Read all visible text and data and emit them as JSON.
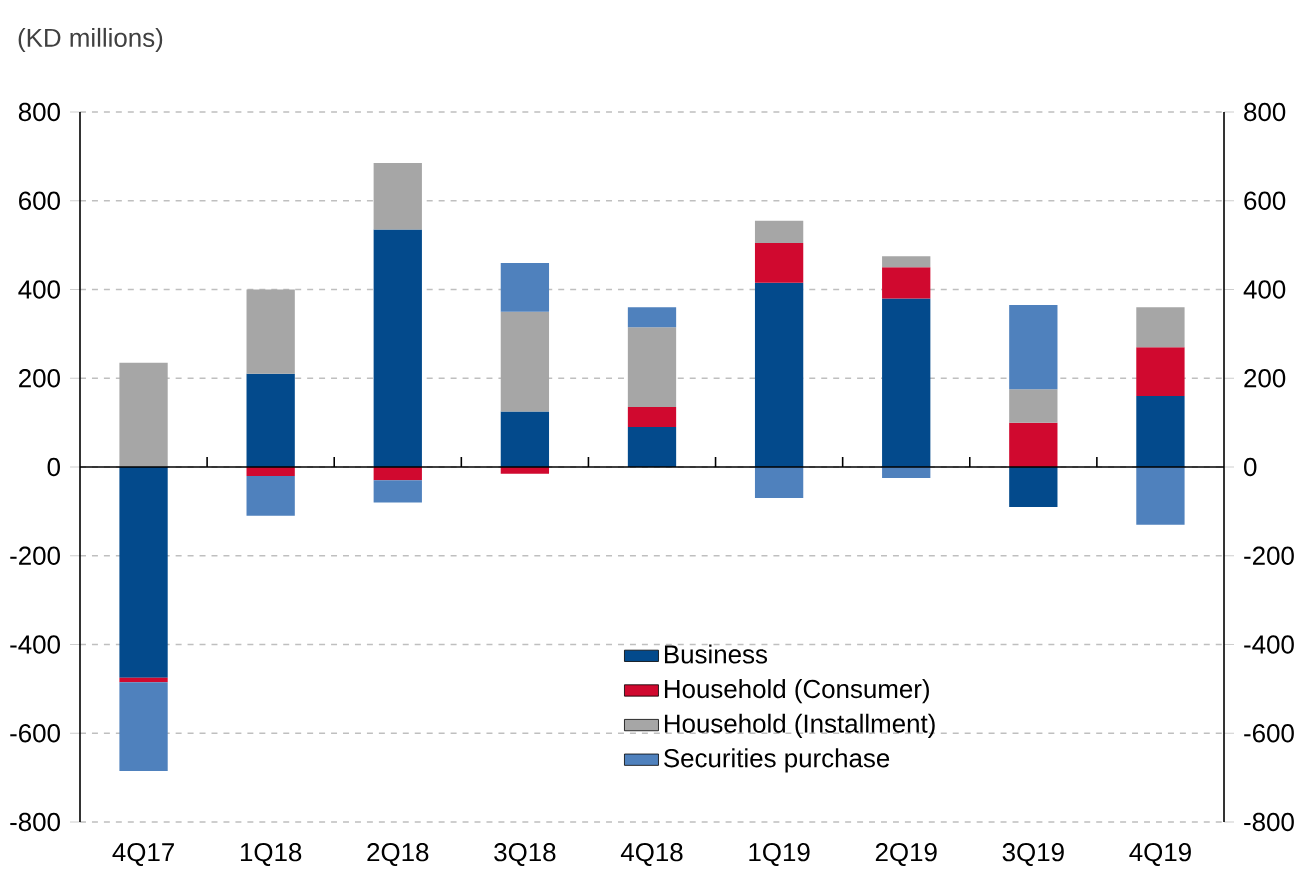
{
  "chart_data": {
    "type": "bar",
    "stacked": true,
    "annotations": [
      "(KD millions)"
    ],
    "categories": [
      "4Q17",
      "1Q18",
      "2Q18",
      "3Q18",
      "4Q18",
      "1Q19",
      "2Q19",
      "3Q19",
      "4Q19"
    ],
    "series": [
      {
        "name": "Business",
        "color": "#034a8c",
        "values": [
          -475,
          210,
          535,
          125,
          90,
          415,
          380,
          -90,
          160
        ]
      },
      {
        "name": "Household (Consumer)",
        "color": "#d0092f",
        "values": [
          -10,
          -20,
          -30,
          -15,
          45,
          90,
          70,
          100,
          110
        ]
      },
      {
        "name": "Household (Installment)",
        "color": "#a6a6a6",
        "values": [
          235,
          190,
          150,
          225,
          180,
          50,
          25,
          75,
          90
        ]
      },
      {
        "name": "Securities purchase",
        "color": "#4f81bd",
        "values": [
          -200,
          -90,
          -50,
          110,
          45,
          -70,
          -25,
          190,
          -130
        ]
      }
    ],
    "ylim": [
      -800,
      800
    ],
    "yticks": [
      -800,
      -600,
      -400,
      -200,
      0,
      200,
      400,
      600,
      800
    ],
    "y2lim": [
      -800,
      800
    ],
    "y2ticks": [
      -800,
      -600,
      -400,
      -200,
      0,
      200,
      400,
      600,
      800
    ],
    "grid": "y",
    "legend": "bottom right"
  }
}
